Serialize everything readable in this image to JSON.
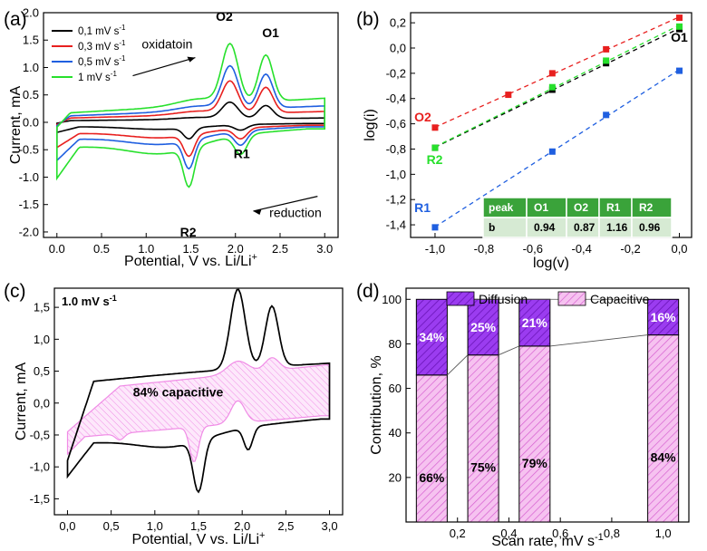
{
  "colors": {
    "black": "#000000",
    "red": "#e8201f",
    "blue": "#1f5fe0",
    "green": "#27e02c",
    "purple": "#8a2be2",
    "pink": "#f08ce6",
    "table_dark": "#3aa33a",
    "table_light": "#d6ead3"
  },
  "chart_data": [
    {
      "id": "a",
      "panel_label": "(a)",
      "type": "line",
      "xlabel": "Potential, V vs. Li/Li",
      "xlabel_sup": "+",
      "ylabel": "Current, mA",
      "xlim": [
        -0.15,
        3.15
      ],
      "ylim": [
        -2.1,
        2.0
      ],
      "xticks": [
        "0.0",
        "0.5",
        "1.0",
        "1.5",
        "2.0",
        "2.5",
        "3.0"
      ],
      "yticks": [
        "-2.0",
        "-1.5",
        "-1.0",
        "-0.5",
        "0.0",
        "0.5",
        "1.0",
        "1.5",
        "2.0"
      ],
      "legend": [
        {
          "label": "0,1 mV s",
          "sup": "-1",
          "color": "#000000"
        },
        {
          "label": "0,3 mV s",
          "sup": "-1",
          "color": "#e8201f"
        },
        {
          "label": "0,5 mV s",
          "sup": "-1",
          "color": "#1f5fe0"
        },
        {
          "label": "1 mV s",
          "sup": "-1",
          "color": "#27e02c"
        }
      ],
      "annotations": {
        "o2": "O2",
        "o1": "O1",
        "r1": "R1",
        "r2": "R2",
        "oxidation": "oxidatoin",
        "reduction": "reduction"
      },
      "series": [
        {
          "name": "0,1 mV s-1",
          "color": "#000000",
          "scale": 0.18,
          "peak_scale": 0.28
        },
        {
          "name": "0,3 mV s-1",
          "color": "#e8201f",
          "scale": 0.45,
          "peak_scale": 0.55
        },
        {
          "name": "0,5 mV s-1",
          "color": "#1f5fe0",
          "scale": 0.68,
          "peak_scale": 0.73
        },
        {
          "name": "1 mV s-1",
          "color": "#27e02c",
          "scale": 1.0,
          "peak_scale": 1.0
        }
      ]
    },
    {
      "id": "b",
      "panel_label": "(b)",
      "type": "scatter",
      "xlabel": "log(v)",
      "ylabel": "log(i)",
      "xlim": [
        -1.1,
        0.05
      ],
      "ylim": [
        -1.5,
        0.28
      ],
      "xticks": [
        "-1,0",
        "-0,8",
        "-0,6",
        "-0,4",
        "-0,2",
        "0,0"
      ],
      "yticks": [
        "-1,4",
        "-1,2",
        "-1,0",
        "-0,8",
        "-0,6",
        "-0,4",
        "-0,2",
        "0,0",
        "0,2"
      ],
      "series": [
        {
          "name": "O2",
          "color": "#e8201f",
          "x": [
            -1.0,
            -0.7,
            -0.52,
            -0.3,
            0.0
          ],
          "y": [
            -0.63,
            -0.37,
            -0.2,
            -0.01,
            0.24
          ]
        },
        {
          "name": "O1",
          "color": "#000000",
          "x": [
            -1.0,
            -0.52,
            -0.3,
            0.0
          ],
          "y": [
            -0.79,
            -0.33,
            -0.12,
            0.15
          ]
        },
        {
          "name": "R2",
          "color": "#27e02c",
          "x": [
            -1.0,
            -0.52,
            -0.3,
            0.0
          ],
          "y": [
            -0.79,
            -0.31,
            -0.1,
            0.17
          ]
        },
        {
          "name": "R1",
          "color": "#1f5fe0",
          "x": [
            -1.0,
            -0.52,
            -0.3,
            0.0
          ],
          "y": [
            -1.42,
            -0.82,
            -0.53,
            -0.18
          ]
        }
      ],
      "table": {
        "header": [
          "peak",
          "O1",
          "O2",
          "R1",
          "R2"
        ],
        "row": [
          "b",
          "0.94",
          "0.87",
          "1.16",
          "0.96"
        ]
      }
    },
    {
      "id": "c",
      "panel_label": "(c)",
      "type": "area",
      "title": "1.0 mV s",
      "title_sup": "-1",
      "xlabel": "Potential, V vs. Li/Li",
      "xlabel_sup": "+",
      "ylabel": "Current, mA",
      "xlim": [
        -0.15,
        3.15
      ],
      "ylim": [
        -1.75,
        1.8
      ],
      "xticks": [
        "0,0",
        "0,5",
        "1,0",
        "1,5",
        "2,0",
        "2,5",
        "3,0"
      ],
      "yticks": [
        "-1,5",
        "-1,0",
        "-0,5",
        "0,0",
        "0,5",
        "1,0",
        "1,5"
      ],
      "annotation": "84% capacitive"
    },
    {
      "id": "d",
      "panel_label": "(d)",
      "type": "bar",
      "xlabel": "Scan rate, mV s",
      "xlabel_sup": "-1",
      "ylabel": "Contribution, %",
      "xlim": [
        0.0,
        1.1
      ],
      "ylim": [
        0,
        105
      ],
      "xticks": [
        "0,2",
        "0,4",
        "0,6",
        "0,8",
        "1,0"
      ],
      "yticks": [
        "20",
        "40",
        "60",
        "80",
        "100"
      ],
      "legend": [
        "Diffusion",
        "Capacitive"
      ],
      "x": [
        0.1,
        0.3,
        0.5,
        1.0
      ],
      "capacitive": [
        66,
        75,
        79,
        84
      ],
      "diffusion": [
        34,
        25,
        21,
        16
      ],
      "capacitive_labels": [
        "66%",
        "75%",
        "79%",
        "84%"
      ],
      "diffusion_labels": [
        "34%",
        "25%",
        "21%",
        "16%"
      ]
    }
  ]
}
